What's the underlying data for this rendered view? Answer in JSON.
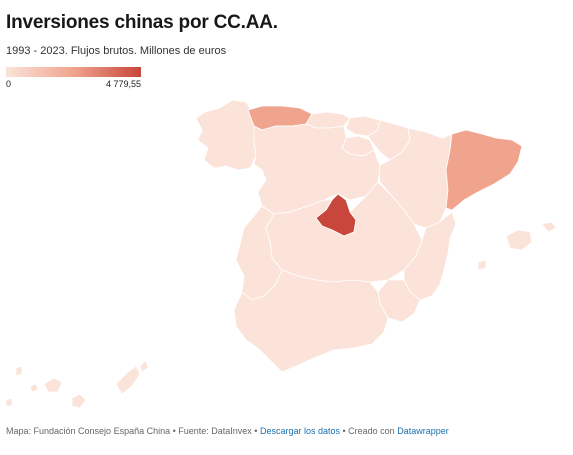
{
  "title": "Inversiones chinas por CC.AA.",
  "subtitle": "1993 - 2023. Flujos brutos. Millones de euros",
  "legend": {
    "min_label": "0",
    "max_label": "4 779,55"
  },
  "colors": {
    "scale_low": "#fbe3da",
    "scale_mid": "#f0a48e",
    "scale_high": "#c8463c",
    "link": "#1a6fb0"
  },
  "regions": [
    {
      "name": "Galicia",
      "level": "low"
    },
    {
      "name": "Asturias",
      "level": "mid"
    },
    {
      "name": "Cantabria",
      "level": "low"
    },
    {
      "name": "País Vasco",
      "level": "low"
    },
    {
      "name": "Navarra",
      "level": "low"
    },
    {
      "name": "La Rioja",
      "level": "low"
    },
    {
      "name": "Aragón",
      "level": "low"
    },
    {
      "name": "Cataluña",
      "level": "mid"
    },
    {
      "name": "Castilla y León",
      "level": "low"
    },
    {
      "name": "Madrid",
      "level": "high"
    },
    {
      "name": "Castilla-La Mancha",
      "level": "low"
    },
    {
      "name": "Extremadura",
      "level": "low"
    },
    {
      "name": "Comunidad Valenciana",
      "level": "low"
    },
    {
      "name": "Murcia",
      "level": "low"
    },
    {
      "name": "Andalucía",
      "level": "low"
    },
    {
      "name": "Islas Baleares",
      "level": "low"
    },
    {
      "name": "Canarias",
      "level": "low"
    }
  ],
  "footer": {
    "prefix": "Mapa: Fundación Consejo España China • Fuente: DataInvex • ",
    "download_link": "Descargar los datos",
    "middle": " • Creado con ",
    "tool_link": "Datawrapper"
  }
}
